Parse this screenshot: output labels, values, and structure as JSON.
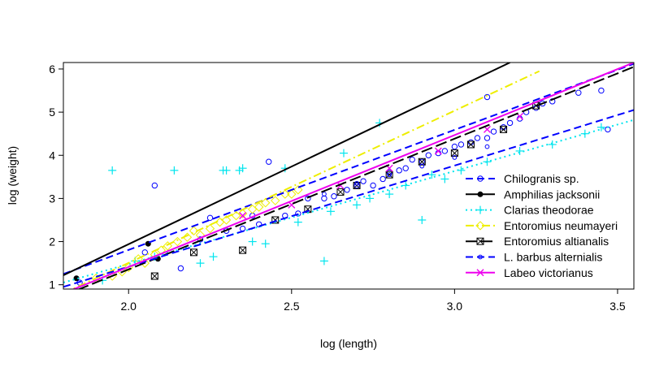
{
  "chart_data": {
    "type": "scatter",
    "title": "",
    "xlabel": "log (length)",
    "ylabel": "log (weight)",
    "xlim": [
      1.8,
      3.55
    ],
    "ylim": [
      0.9,
      6.15
    ],
    "x_ticks": [
      2.0,
      2.5,
      3.0,
      3.5
    ],
    "x_tick_labels": [
      "2.0",
      "2.5",
      "3.0",
      "3.5"
    ],
    "y_ticks": [
      1,
      2,
      3,
      4,
      5,
      6
    ],
    "y_tick_labels": [
      "1",
      "2",
      "3",
      "4",
      "5",
      "6"
    ],
    "grid": false,
    "legend_position": "bottom-right",
    "series": [
      {
        "name": "Chilogranis sp.",
        "color": "#0000FF",
        "marker": "open-circle",
        "line": "dashed",
        "fit": [
          [
            1.8,
            1.25
          ],
          [
            3.55,
            6.12
          ]
        ],
        "points": [
          [
            1.85,
            1.05
          ],
          [
            2.05,
            1.75
          ],
          [
            2.08,
            3.3
          ],
          [
            2.16,
            1.38
          ],
          [
            2.22,
            2.05
          ],
          [
            2.25,
            2.55
          ],
          [
            2.3,
            2.25
          ],
          [
            2.35,
            2.3
          ],
          [
            2.38,
            2.6
          ],
          [
            2.4,
            2.4
          ],
          [
            2.43,
            3.85
          ],
          [
            2.48,
            2.6
          ],
          [
            2.52,
            2.65
          ],
          [
            2.55,
            3.0
          ],
          [
            2.6,
            3.0
          ],
          [
            2.63,
            3.05
          ],
          [
            2.67,
            3.2
          ],
          [
            2.7,
            3.3
          ],
          [
            2.72,
            3.4
          ],
          [
            2.75,
            3.3
          ],
          [
            2.78,
            3.45
          ],
          [
            2.8,
            3.6
          ],
          [
            2.83,
            3.65
          ],
          [
            2.85,
            3.7
          ],
          [
            2.87,
            3.9
          ],
          [
            2.9,
            3.85
          ],
          [
            2.92,
            4.0
          ],
          [
            2.95,
            4.05
          ],
          [
            2.97,
            4.1
          ],
          [
            3.0,
            4.2
          ],
          [
            3.02,
            4.25
          ],
          [
            3.05,
            4.3
          ],
          [
            3.07,
            4.4
          ],
          [
            3.1,
            4.4
          ],
          [
            3.1,
            5.35
          ],
          [
            3.12,
            4.55
          ],
          [
            3.15,
            4.65
          ],
          [
            3.17,
            4.75
          ],
          [
            3.2,
            4.85
          ],
          [
            3.22,
            5.0
          ],
          [
            3.25,
            5.1
          ],
          [
            3.27,
            5.2
          ],
          [
            3.3,
            5.25
          ],
          [
            3.38,
            5.45
          ],
          [
            3.45,
            5.5
          ],
          [
            3.47,
            4.6
          ]
        ]
      },
      {
        "name": "Amphilias jacksonii",
        "color": "#000000",
        "marker": "filled-circle",
        "line": "solid",
        "fit": [
          [
            1.8,
            1.22
          ],
          [
            3.17,
            6.15
          ]
        ],
        "points": [
          [
            1.84,
            1.15
          ],
          [
            2.06,
            1.95
          ],
          [
            2.09,
            1.6
          ]
        ]
      },
      {
        "name": "Clarias theodorae",
        "color": "#00E5EE",
        "marker": "plus",
        "line": "dotted",
        "fit": [
          [
            1.8,
            1.05
          ],
          [
            3.55,
            4.82
          ]
        ],
        "points": [
          [
            1.92,
            1.1
          ],
          [
            1.95,
            3.65
          ],
          [
            2.02,
            1.55
          ],
          [
            2.08,
            1.65
          ],
          [
            2.14,
            3.65
          ],
          [
            2.22,
            1.5
          ],
          [
            2.26,
            1.65
          ],
          [
            2.29,
            3.65
          ],
          [
            2.3,
            3.65
          ],
          [
            2.34,
            3.65
          ],
          [
            2.35,
            3.7
          ],
          [
            2.38,
            2.0
          ],
          [
            2.42,
            1.95
          ],
          [
            2.48,
            3.7
          ],
          [
            2.52,
            2.45
          ],
          [
            2.6,
            1.55
          ],
          [
            2.62,
            2.7
          ],
          [
            2.66,
            4.05
          ],
          [
            2.7,
            2.85
          ],
          [
            2.74,
            3.0
          ],
          [
            2.77,
            4.75
          ],
          [
            2.8,
            3.1
          ],
          [
            2.85,
            3.3
          ],
          [
            2.9,
            2.5
          ],
          [
            2.93,
            3.55
          ],
          [
            2.97,
            3.45
          ],
          [
            3.02,
            3.65
          ],
          [
            3.1,
            3.85
          ],
          [
            3.2,
            4.1
          ],
          [
            3.3,
            4.25
          ],
          [
            3.4,
            4.5
          ],
          [
            3.45,
            4.65
          ]
        ]
      },
      {
        "name": "Entoromius neumayeri",
        "color": "#EEEE00",
        "marker": "open-diamond",
        "line": "dashdot",
        "fit": [
          [
            1.8,
            0.8
          ],
          [
            3.26,
            5.95
          ]
        ],
        "points": [
          [
            1.9,
            1.15
          ],
          [
            1.95,
            1.2
          ],
          [
            1.98,
            1.3
          ],
          [
            2.0,
            1.4
          ],
          [
            2.03,
            1.6
          ],
          [
            2.05,
            1.5
          ],
          [
            2.08,
            1.7
          ],
          [
            2.1,
            1.8
          ],
          [
            2.12,
            1.9
          ],
          [
            2.15,
            2.0
          ],
          [
            2.18,
            2.1
          ],
          [
            2.2,
            2.25
          ],
          [
            2.22,
            2.15
          ],
          [
            2.25,
            2.3
          ],
          [
            2.28,
            2.45
          ],
          [
            2.3,
            2.5
          ],
          [
            2.33,
            2.6
          ],
          [
            2.35,
            2.65
          ],
          [
            2.38,
            2.75
          ],
          [
            2.4,
            2.8
          ],
          [
            2.42,
            2.9
          ],
          [
            2.45,
            2.95
          ],
          [
            2.48,
            3.1
          ],
          [
            2.5,
            3.1
          ],
          [
            2.52,
            3.2
          ]
        ]
      },
      {
        "name": "Entoromius altianalis",
        "color": "#000000",
        "marker": "boxed-x",
        "line": "longdash",
        "fit": [
          [
            1.8,
            0.75
          ],
          [
            3.55,
            6.05
          ]
        ],
        "points": [
          [
            2.08,
            1.2
          ],
          [
            2.2,
            1.75
          ],
          [
            2.35,
            1.8
          ],
          [
            2.45,
            2.5
          ],
          [
            2.55,
            2.75
          ],
          [
            2.65,
            3.15
          ],
          [
            2.7,
            3.3
          ],
          [
            2.8,
            3.55
          ],
          [
            2.9,
            3.85
          ],
          [
            3.0,
            4.05
          ],
          [
            3.05,
            4.25
          ],
          [
            3.15,
            4.6
          ],
          [
            3.25,
            5.15
          ]
        ]
      },
      {
        "name": "L. barbus alternialis",
        "color": "#0000FF",
        "marker": "small-circle",
        "line": "dashed",
        "fit": [
          [
            1.8,
            0.95
          ],
          [
            3.55,
            5.05
          ]
        ],
        "points": [
          [
            2.6,
            3.1
          ],
          [
            2.7,
            3.35
          ],
          [
            2.8,
            3.55
          ],
          [
            2.9,
            3.75
          ],
          [
            3.0,
            3.95
          ],
          [
            3.1,
            4.2
          ]
        ]
      },
      {
        "name": "Labeo victorianus",
        "color": "#EE00EE",
        "marker": "x",
        "line": "solid",
        "fit": [
          [
            1.8,
            0.8
          ],
          [
            3.55,
            6.15
          ]
        ],
        "points": [
          [
            2.35,
            2.6
          ],
          [
            2.5,
            2.85
          ],
          [
            2.65,
            3.3
          ],
          [
            2.8,
            3.7
          ],
          [
            2.95,
            4.1
          ],
          [
            3.1,
            4.6
          ],
          [
            3.2,
            4.9
          ]
        ]
      }
    ]
  }
}
